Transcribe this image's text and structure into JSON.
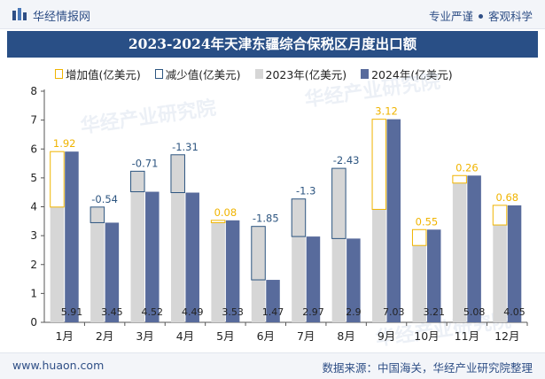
{
  "header": {
    "brand": "华经情报网",
    "tagline_left": "专业严谨",
    "tagline_right": "客观科学"
  },
  "title": "2023-2024年天津东疆综合保税区月度出口额",
  "legend": {
    "increase": "增加值(亿美元)",
    "decrease": "减少值(亿美元)",
    "y2023": "2023年(亿美元)",
    "y2024": "2024年(亿美元)"
  },
  "watermark": "华经产业研究院",
  "colors": {
    "bar2023": "#d6d6d6",
    "bar2024": "#586b9c",
    "increase": "#f0b400",
    "decrease": "#2d5580",
    "title_bg": "#294f86"
  },
  "chart_data": {
    "type": "bar",
    "categories": [
      "1月",
      "2月",
      "3月",
      "4月",
      "5月",
      "6月",
      "7月",
      "8月",
      "9月",
      "10月",
      "11月",
      "12月"
    ],
    "series": [
      {
        "name": "2023年(亿美元)",
        "values": [
          3.99,
          3.99,
          5.23,
          5.8,
          3.45,
          3.32,
          4.27,
          5.33,
          3.91,
          2.66,
          4.82,
          3.37
        ]
      },
      {
        "name": "2024年(亿美元)",
        "values": [
          5.91,
          3.45,
          4.52,
          4.49,
          3.53,
          1.47,
          2.97,
          2.9,
          7.03,
          3.21,
          5.08,
          4.05
        ]
      }
    ],
    "change_labels": [
      "1.92",
      "-0.54",
      "-0.71",
      "-1.31",
      "0.08",
      "-1.85",
      "-1.3",
      "-2.43",
      "3.12",
      "0.55",
      "0.26",
      "0.68"
    ],
    "value_labels": [
      "5.91",
      "3.45",
      "4.52",
      "4.49",
      "3.53",
      "1.47",
      "2.97",
      "2.9",
      "7.03",
      "3.21",
      "5.08",
      "4.05"
    ],
    "ylim": [
      0,
      8
    ],
    "yticks": [
      0,
      1,
      2,
      3,
      4,
      5,
      6,
      7,
      8
    ],
    "legend_position": "top"
  },
  "footer": {
    "website": "www.huaon.com",
    "source": "数据来源：中国海关，华经产业研究院整理"
  }
}
